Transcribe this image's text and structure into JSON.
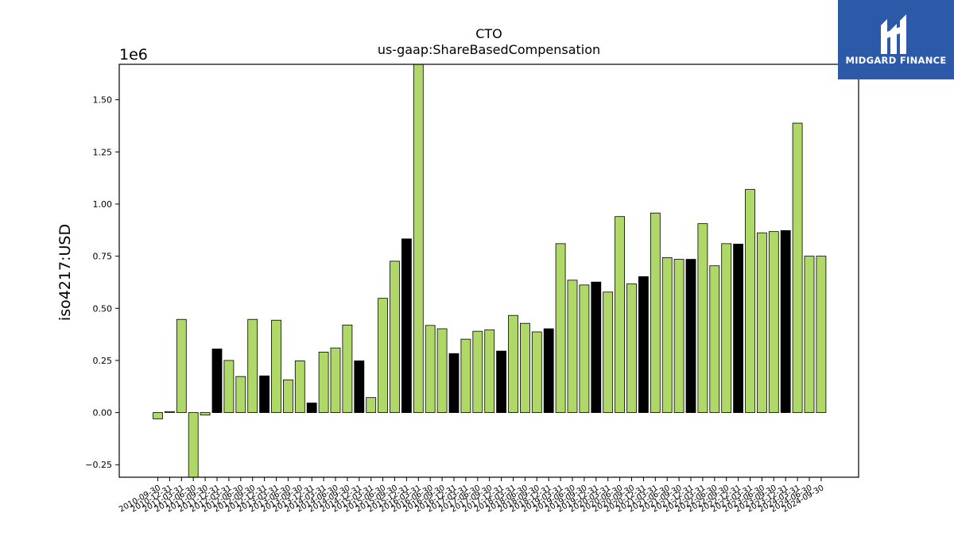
{
  "chart_data": {
    "type": "bar",
    "title": "CTO",
    "subtitle": "us-gaap:ShareBasedCompensation",
    "ylabel": "iso4217:USD",
    "y_multiplier_label": "1e6",
    "ylim": [
      -0.31,
      1.67
    ],
    "yticks": [
      -0.25,
      0.0,
      0.25,
      0.5,
      0.75,
      1.0,
      1.25,
      1.5
    ],
    "ytick_labels": [
      "−0.25",
      "0.00",
      "0.25",
      "0.50",
      "0.75",
      "1.00",
      "1.25",
      "1.50"
    ],
    "colors": {
      "quarter": "#b0d869",
      "annual": "#000000",
      "edge": "#000000"
    },
    "categories": [
      "2010-09-30",
      "2010-12-31",
      "2011-03-31",
      "2011-06-30",
      "2011-09-30",
      "2011-12-31",
      "2012-03-31",
      "2012-06-30",
      "2012-09-30",
      "2012-12-31",
      "2013-03-31",
      "2013-06-30",
      "2013-09-30",
      "2013-12-31",
      "2014-03-31",
      "2014-06-30",
      "2014-09-30",
      "2014-12-31",
      "2015-03-31",
      "2015-06-30",
      "2015-09-30",
      "2015-12-31",
      "2016-03-31",
      "2016-06-30",
      "2016-09-30",
      "2016-12-31",
      "2017-03-31",
      "2017-06-30",
      "2017-09-30",
      "2017-12-31",
      "2018-03-31",
      "2018-06-30",
      "2018-09-30",
      "2018-12-31",
      "2019-03-31",
      "2019-06-30",
      "2019-09-30",
      "2019-12-31",
      "2020-03-31",
      "2020-06-30",
      "2020-09-30",
      "2020-12-31",
      "2021-03-31",
      "2021-06-30",
      "2021-09-30",
      "2021-12-31",
      "2022-03-31",
      "2022-06-30",
      "2022-09-30",
      "2022-12-31",
      "2023-03-31",
      "2023-06-30",
      "2023-09-30",
      "2023-12-31",
      "2024-03-31",
      "2024-06-30",
      "2024-09-30"
    ],
    "values": [
      -0.03,
      0.005,
      0.447,
      -0.35,
      -0.012,
      0.305,
      0.25,
      0.173,
      0.447,
      0.176,
      0.443,
      0.157,
      0.248,
      0.046,
      0.29,
      0.31,
      0.42,
      0.248,
      0.072,
      0.548,
      0.726,
      0.833,
      1.68,
      0.418,
      0.402,
      0.283,
      0.352,
      0.39,
      0.397,
      0.295,
      0.466,
      0.428,
      0.387,
      0.402,
      0.81,
      0.635,
      0.612,
      0.626,
      0.578,
      0.94,
      0.617,
      0.652,
      0.957,
      0.743,
      0.735,
      0.735,
      0.906,
      0.704,
      0.81,
      0.808,
      1.07,
      0.862,
      0.868,
      0.873,
      1.388,
      0.75,
      0.75
    ],
    "bar_colors": [
      "quarter",
      "quarter",
      "quarter",
      "quarter",
      "quarter",
      "annual",
      "quarter",
      "quarter",
      "quarter",
      "annual",
      "quarter",
      "quarter",
      "quarter",
      "annual",
      "quarter",
      "quarter",
      "quarter",
      "annual",
      "quarter",
      "quarter",
      "quarter",
      "annual",
      "quarter",
      "quarter",
      "quarter",
      "annual",
      "quarter",
      "quarter",
      "quarter",
      "annual",
      "quarter",
      "quarter",
      "quarter",
      "annual",
      "quarter",
      "quarter",
      "quarter",
      "annual",
      "quarter",
      "quarter",
      "quarter",
      "annual",
      "quarter",
      "quarter",
      "quarter",
      "annual",
      "quarter",
      "quarter",
      "quarter",
      "annual",
      "quarter",
      "quarter",
      "quarter",
      "annual",
      "quarter",
      "quarter",
      "quarter"
    ]
  },
  "logo": {
    "text": "MIDGARD FINANCE",
    "background": "#2d5aa8"
  }
}
